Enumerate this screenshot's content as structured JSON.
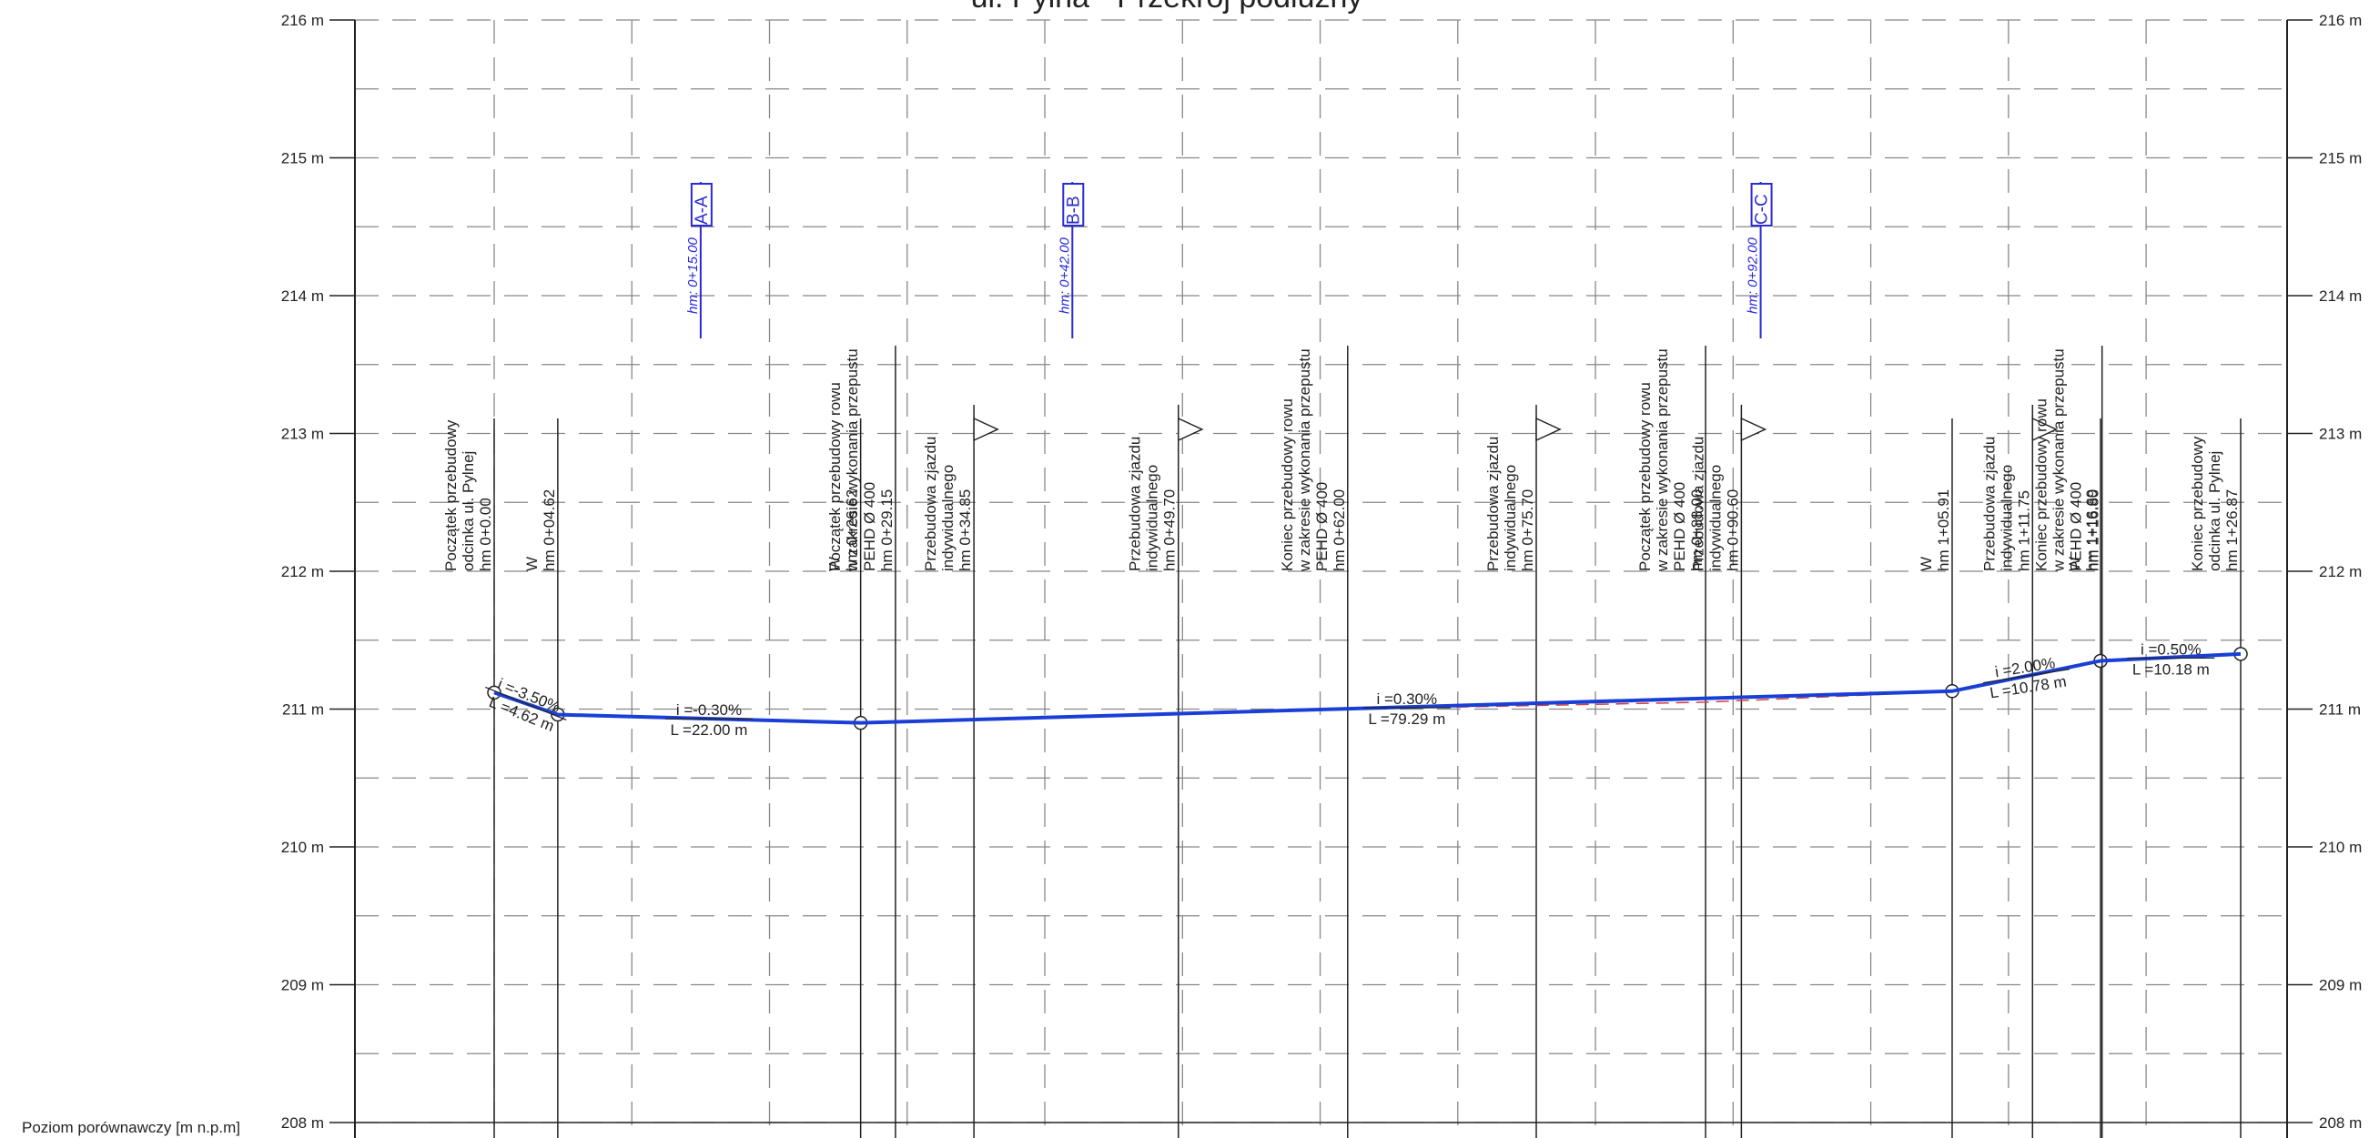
{
  "title": "ul. Pylna - Przekrój podłużny",
  "datum_label": "Poziom porównawczy [m n.p.m]",
  "y_axis": {
    "min": 208,
    "max": 216,
    "unit": "m",
    "ticks": [
      216,
      215,
      214,
      213,
      212,
      211,
      210,
      209,
      208
    ]
  },
  "colors": {
    "profile": "#1a3fd6",
    "section": "#2a2ad8",
    "terrain": "#d04040",
    "grid": "#888888",
    "ink": "#222222"
  },
  "stations": [
    {
      "id": "s0",
      "x": 0.0,
      "z": 211.12,
      "marker": true,
      "lines": [
        "Początek przebudowy",
        "odcinka ul. Pylnej",
        "hm 0+0.00"
      ]
    },
    {
      "id": "s1",
      "x": 4.62,
      "z": 210.96,
      "marker": true,
      "lines": [
        "W",
        "hm 0+04.62"
      ]
    },
    {
      "id": "s2",
      "x": 26.62,
      "z": 210.9,
      "marker": true,
      "lines": [
        "W",
        "hm 0+26.62"
      ]
    },
    {
      "id": "s3",
      "x": 29.15,
      "z": 210.91,
      "lines": [
        "Początek przebudowy rowu",
        "w zakresie wykonania przepustu",
        "PEHD Ø 400",
        "hm 0+29.15"
      ]
    },
    {
      "id": "s4",
      "x": 34.85,
      "z": 210.92,
      "flag": true,
      "lines": [
        "Przebudowa zjazdu",
        "indywidualnego",
        "hm 0+34.85"
      ]
    },
    {
      "id": "s5",
      "x": 49.7,
      "z": 210.97,
      "flag": true,
      "lines": [
        "Przebudowa zjazdu",
        "indywidualnego",
        "hm 0+49.70"
      ]
    },
    {
      "id": "s6",
      "x": 62.0,
      "z": 211.0,
      "lines": [
        "Koniec przebudowy rowu",
        "w zakresie wykonania przepustu",
        "PEHD Ø 400",
        "hm 0+62.00"
      ]
    },
    {
      "id": "s7",
      "x": 75.7,
      "z": 211.04,
      "flag": true,
      "lines": [
        "Przebudowa zjazdu",
        "indywidualnego",
        "hm 0+75.70"
      ]
    },
    {
      "id": "s8",
      "x": 88.0,
      "z": 211.08,
      "lines": [
        "Początek przebudowy rowu",
        "w zakresie wykonania przepustu",
        "PEHD Ø 400",
        "hm 0+88.00"
      ]
    },
    {
      "id": "s9",
      "x": 90.6,
      "z": 211.08,
      "flag": true,
      "lines": [
        "Przebudowa zjazdu",
        "indywidualnego",
        "hm 0+90.60"
      ]
    },
    {
      "id": "s10",
      "x": 105.91,
      "z": 211.13,
      "marker": true,
      "lines": [
        "W",
        "hm 1+05.91"
      ]
    },
    {
      "id": "s11",
      "x": 111.75,
      "z": 211.25,
      "flag": true,
      "lines": [
        "Przebudowa zjazdu",
        "indywidualnego",
        "hm 1+11.75"
      ]
    },
    {
      "id": "s12",
      "x": 116.69,
      "z": 211.35,
      "marker": true,
      "lines": [
        "W",
        "hm 1+16.69"
      ]
    },
    {
      "id": "s13",
      "x": 116.8,
      "z": 211.35,
      "lines": [
        "Koniec przebudowy rowu",
        "w zakresie wykonania przepustu",
        "PEHD Ø 400",
        "hm 1+16.80"
      ]
    },
    {
      "id": "s14",
      "x": 126.87,
      "z": 211.4,
      "marker": true,
      "lines": [
        "Koniec przebudowy",
        "odcinka ul. Pylnej",
        "hm 1+26.87"
      ]
    }
  ],
  "profile_points": [
    {
      "x": 0.0,
      "z": 211.12
    },
    {
      "x": 4.62,
      "z": 210.96
    },
    {
      "x": 26.62,
      "z": 210.9
    },
    {
      "x": 105.91,
      "z": 211.13
    },
    {
      "x": 116.69,
      "z": 211.35
    },
    {
      "x": 126.87,
      "z": 211.4
    }
  ],
  "terrain_points": [
    {
      "x": 29.15,
      "z": 210.91
    },
    {
      "x": 62.0,
      "z": 211.0
    },
    {
      "x": 88.0,
      "z": 211.05
    },
    {
      "x": 105.91,
      "z": 211.13
    }
  ],
  "grade_labels": [
    {
      "id": "g1",
      "slope": "i =-3.50%",
      "length": "L =4.62 m",
      "x": 2.3,
      "z": 211.04,
      "angle": 22
    },
    {
      "id": "g2",
      "slope": "i =-0.30%",
      "length": "L =22.00 m",
      "x": 15.6,
      "z": 210.93,
      "angle": 0
    },
    {
      "id": "g3",
      "slope": "i =0.30%",
      "length": "L =79.29 m",
      "x": 66.3,
      "z": 211.01,
      "angle": 0
    },
    {
      "id": "g4",
      "slope": "i =2.00%",
      "length": "L =10.78 m",
      "x": 111.3,
      "z": 211.24,
      "angle": -9
    },
    {
      "id": "g5",
      "slope": "i =0.50%",
      "length": "L =10.18 m",
      "x": 121.8,
      "z": 211.37,
      "angle": 0
    }
  ],
  "sections": [
    {
      "id": "A-A",
      "name": "A-A",
      "chainage": "hm: 0+15.00",
      "x": 15.0
    },
    {
      "id": "B-B",
      "name": "B-B",
      "chainage": "hm: 0+42.00",
      "x": 42.0
    },
    {
      "id": "C-C",
      "name": "C-C",
      "chainage": "hm: 0+92.00",
      "x": 92.0
    }
  ]
}
